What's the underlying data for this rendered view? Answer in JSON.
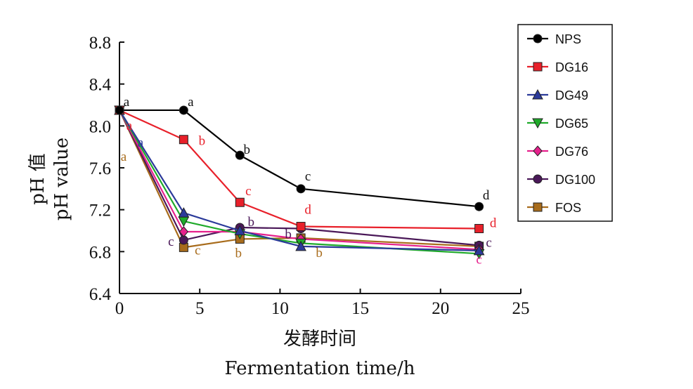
{
  "chart_data": {
    "type": "line",
    "xlabel": "发酵时间",
    "xlabel_en": "Fermentation time/h",
    "ylabel": "pH 值",
    "ylabel_en": "pH value",
    "xlim": [
      0,
      25
    ],
    "ylim": [
      6.4,
      8.8
    ],
    "xticks": [
      "0",
      "5",
      "10",
      "15",
      "20",
      "25"
    ],
    "yticks": [
      "6.4",
      "6.8",
      "7.2",
      "7.6",
      "8.0",
      "8.4",
      "8.8"
    ],
    "grid": false,
    "legend_position": "right",
    "x": [
      0,
      4,
      7.5,
      11.3,
      22.4
    ],
    "series": [
      {
        "name": "NPS",
        "color": "#000000",
        "marker": "circle",
        "values": [
          8.15,
          8.15,
          7.72,
          7.4,
          7.23
        ],
        "labels": [
          "a",
          "a",
          "b",
          "c",
          "d"
        ]
      },
      {
        "name": "DG16",
        "color": "#e8202a",
        "marker": "square",
        "values": [
          8.15,
          7.87,
          7.27,
          7.04,
          7.02
        ],
        "labels": [
          "a",
          "b",
          "c",
          "d",
          "d"
        ]
      },
      {
        "name": "DG49",
        "color": "#2b3a9a",
        "marker": "triangle-up",
        "values": [
          8.15,
          7.17,
          7.0,
          6.85,
          6.81
        ],
        "labels": [
          "a",
          "",
          "",
          "",
          ""
        ]
      },
      {
        "name": "DG65",
        "color": "#1faa2a",
        "marker": "triangle-down",
        "values": [
          8.15,
          7.09,
          6.97,
          6.88,
          6.78
        ],
        "labels": [
          "",
          "",
          "",
          "",
          ""
        ]
      },
      {
        "name": "DG76",
        "color": "#e6208c",
        "marker": "diamond",
        "values": [
          8.15,
          6.99,
          6.99,
          6.92,
          6.82
        ],
        "labels": [
          "",
          "",
          "",
          "",
          "c"
        ]
      },
      {
        "name": "DG100",
        "color": "#4a1858",
        "marker": "circle",
        "values": [
          8.15,
          6.91,
          7.03,
          7.02,
          6.86
        ],
        "labels": [
          "",
          "c",
          "b",
          "b",
          "c"
        ]
      },
      {
        "name": "FOS",
        "color": "#a86c1c",
        "marker": "square",
        "values": [
          8.15,
          6.84,
          6.92,
          6.93,
          6.85
        ],
        "labels": [
          "a",
          "c",
          "b",
          "b",
          ""
        ]
      }
    ]
  }
}
